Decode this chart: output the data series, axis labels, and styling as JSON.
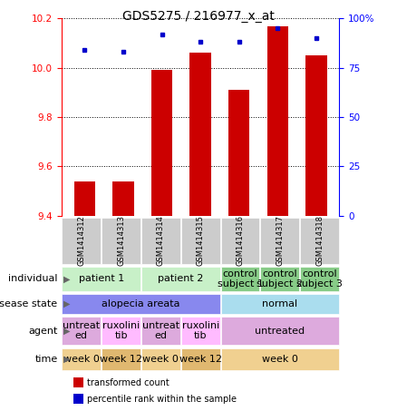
{
  "title": "GDS5275 / 216977_x_at",
  "samples": [
    "GSM1414312",
    "GSM1414313",
    "GSM1414314",
    "GSM1414315",
    "GSM1414316",
    "GSM1414317",
    "GSM1414318"
  ],
  "red_values": [
    9.54,
    9.54,
    9.99,
    10.06,
    9.91,
    10.17,
    10.05
  ],
  "blue_values": [
    84,
    83,
    92,
    88,
    88,
    95,
    90
  ],
  "ylim_red": [
    9.4,
    10.2
  ],
  "ylim_blue": [
    0,
    100
  ],
  "yticks_red": [
    9.4,
    9.6,
    9.8,
    10.0,
    10.2
  ],
  "yticks_blue": [
    0,
    25,
    50,
    75,
    100
  ],
  "annotation_rows": [
    {
      "label": "individual",
      "cells": [
        {
          "text": "patient 1",
          "colspan": 2,
          "color": "#c8f0c8"
        },
        {
          "text": "patient 2",
          "colspan": 2,
          "color": "#c8f0c8"
        },
        {
          "text": "control\nsubject 1",
          "colspan": 1,
          "color": "#88cc88"
        },
        {
          "text": "control\nsubject 2",
          "colspan": 1,
          "color": "#88cc88"
        },
        {
          "text": "control\nsubject 3",
          "colspan": 1,
          "color": "#88cc88"
        }
      ]
    },
    {
      "label": "disease state",
      "cells": [
        {
          "text": "alopecia areata",
          "colspan": 4,
          "color": "#8888ee"
        },
        {
          "text": "normal",
          "colspan": 3,
          "color": "#aaddee"
        }
      ]
    },
    {
      "label": "agent",
      "cells": [
        {
          "text": "untreat\ned",
          "colspan": 1,
          "color": "#ddaadd"
        },
        {
          "text": "ruxolini\ntib",
          "colspan": 1,
          "color": "#ffbbff"
        },
        {
          "text": "untreat\ned",
          "colspan": 1,
          "color": "#ddaadd"
        },
        {
          "text": "ruxolini\ntib",
          "colspan": 1,
          "color": "#ffbbff"
        },
        {
          "text": "untreated",
          "colspan": 3,
          "color": "#ddaadd"
        }
      ]
    },
    {
      "label": "time",
      "cells": [
        {
          "text": "week 0",
          "colspan": 1,
          "color": "#f0d090"
        },
        {
          "text": "week 12",
          "colspan": 1,
          "color": "#e0b870"
        },
        {
          "text": "week 0",
          "colspan": 1,
          "color": "#f0d090"
        },
        {
          "text": "week 12",
          "colspan": 1,
          "color": "#e0b870"
        },
        {
          "text": "week 0",
          "colspan": 3,
          "color": "#f0d090"
        }
      ]
    }
  ],
  "legend_items": [
    {
      "color": "#cc0000",
      "label": "transformed count"
    },
    {
      "color": "#0000cc",
      "label": "percentile rank within the sample"
    }
  ],
  "bar_color": "#cc0000",
  "dot_color": "#0000cc",
  "background_color": "#ffffff",
  "title_fontsize": 10,
  "tick_fontsize": 7.5,
  "label_fontsize": 8,
  "sample_fontsize": 6,
  "annotation_fontsize": 8,
  "legend_fontsize": 7
}
